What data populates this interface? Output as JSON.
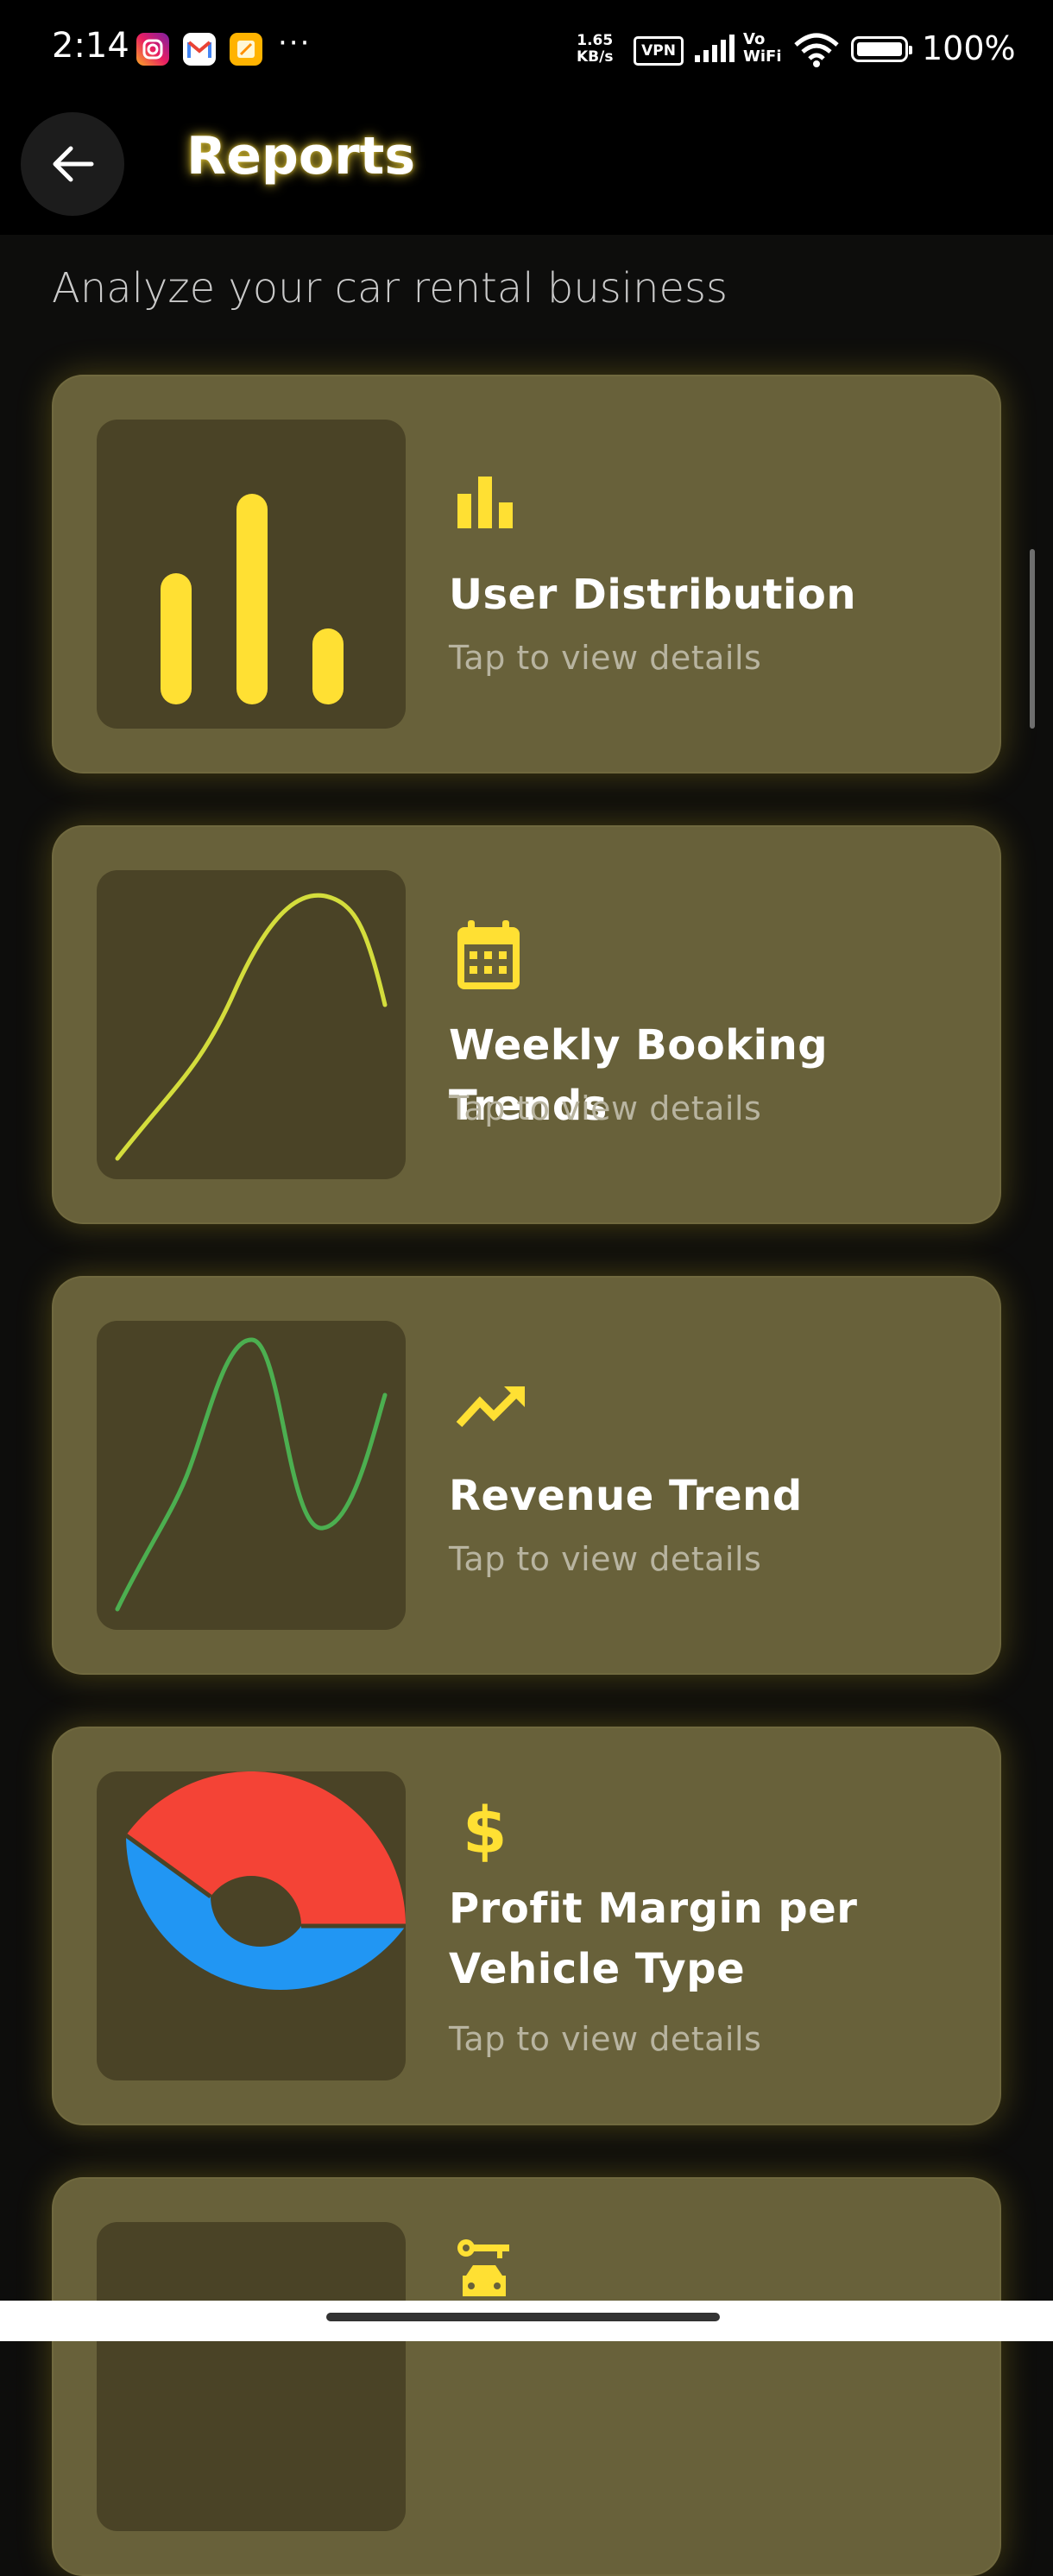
{
  "status_bar": {
    "time": "2:14",
    "more": "···",
    "net_speed_value": "1.65",
    "net_speed_unit": "KB/s",
    "vpn": "VPN",
    "vowifi_top": "Vo",
    "vowifi_bottom": "WiFi",
    "battery": "100%",
    "apps": [
      "instagram-icon",
      "gmail-icon",
      "notes-icon"
    ]
  },
  "header": {
    "title": "Reports",
    "back_icon": "arrow-left-icon"
  },
  "subtitle": "Analyze your car rental business",
  "colors": {
    "accent": "#ffe033",
    "card_bg": "#68613a",
    "thumb_bg": "#4a4326",
    "line_yellow": "#d4dd3c",
    "line_green": "#4caf50",
    "pie_red": "#f44336",
    "pie_blue": "#2196f3"
  },
  "cards": [
    {
      "title": "User Distribution",
      "subtitle": "Tap to view details",
      "icon": "bar-chart-icon",
      "thumbnail": "bar-chart"
    },
    {
      "title": "Weekly Booking Trends",
      "subtitle": "Tap to view details",
      "icon": "calendar-icon",
      "thumbnail": "line-chart"
    },
    {
      "title": "Revenue Trend",
      "subtitle": "Tap to view details",
      "icon": "trending-up-icon",
      "thumbnail": "line-chart"
    },
    {
      "title_line1": "Profit Margin per",
      "title_line2": "Vehicle Type",
      "subtitle": "Tap to view details",
      "icon": "dollar-icon",
      "thumbnail": "donut-chart"
    },
    {
      "title": "",
      "subtitle": "",
      "icon": "car-key-icon",
      "thumbnail": "chart"
    }
  ]
}
